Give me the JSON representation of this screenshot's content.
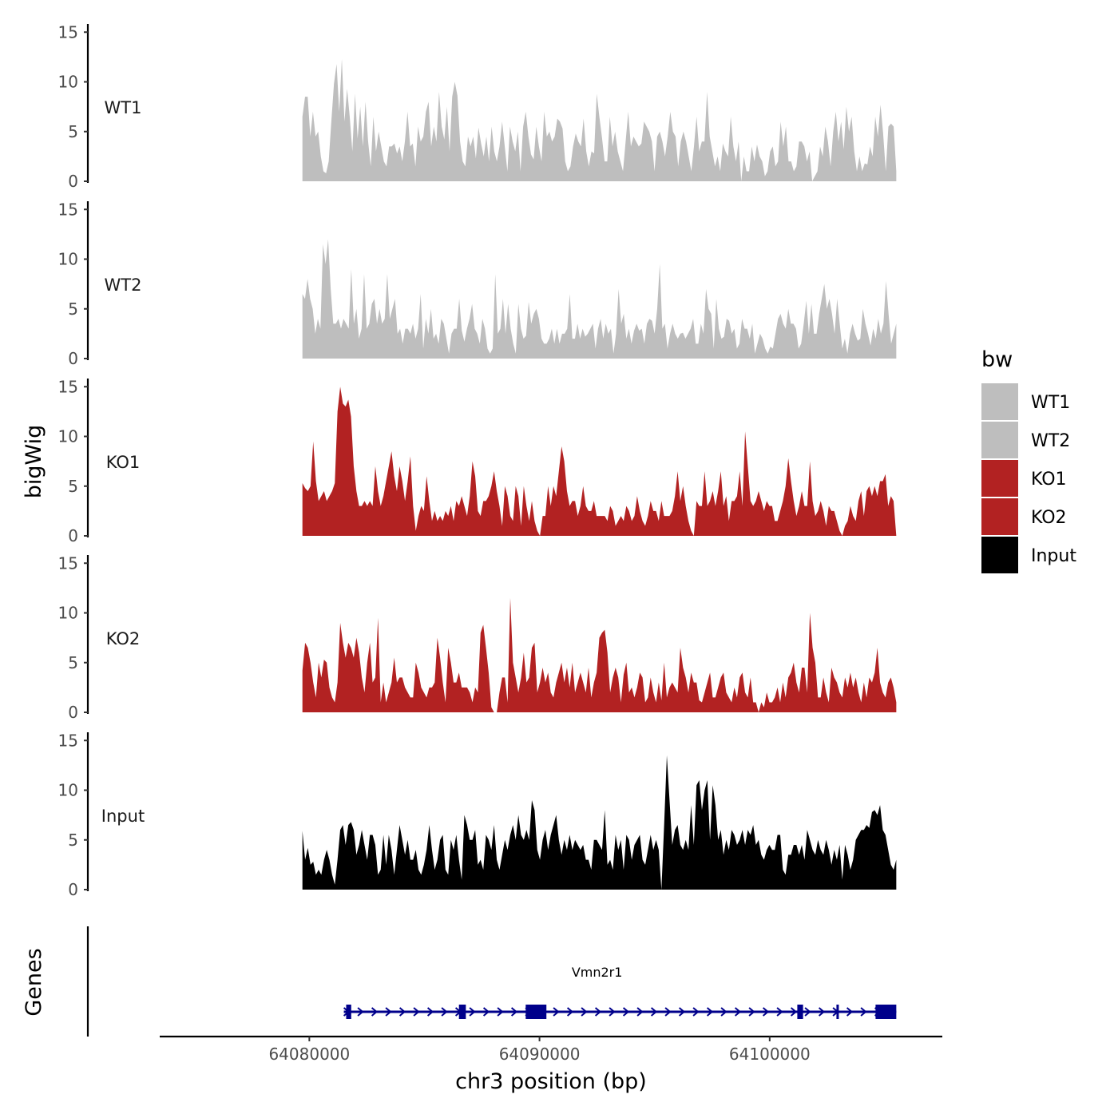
{
  "chart_data": {
    "type": "area",
    "ylabel": "bigWig",
    "xlabel": "chr3 position (bp)",
    "ylim": [
      0,
      15
    ],
    "yticks": [
      0,
      5,
      10,
      15
    ],
    "xlim": [
      64073500,
      64107500
    ],
    "xticks": [
      64080000,
      64090000,
      64100000
    ],
    "xtick_labels": [
      "64080000",
      "64090000",
      "64100000"
    ],
    "data_x_range": [
      64079700,
      64105500
    ],
    "legend": {
      "title": "bw",
      "position": "right",
      "items": [
        {
          "label": "WT1",
          "color": "#bebebe"
        },
        {
          "label": "WT2",
          "color": "#bebebe"
        },
        {
          "label": "KO1",
          "color": "#b22222"
        },
        {
          "label": "KO2",
          "color": "#b22222"
        },
        {
          "label": "Input",
          "color": "#000000"
        }
      ]
    },
    "series": [
      {
        "name": "WT1",
        "color": "#bebebe",
        "values": [
          6.5,
          8.5,
          8.5,
          4.5,
          7,
          4.5,
          5,
          2.5,
          1,
          0.8,
          2,
          6,
          9.8,
          11.8,
          7,
          12.3,
          6,
          9.3,
          6.5,
          3,
          8.8,
          4.3,
          7.5,
          3.5,
          8,
          4,
          1.5,
          6.5,
          3,
          5,
          3.5,
          2,
          1.5,
          3.5,
          3.5,
          3.8,
          2.8,
          3.5,
          2,
          4,
          7,
          3.5,
          3.8,
          1.5,
          5.5,
          4,
          4.5,
          7,
          8,
          3.5,
          5.5,
          4,
          9,
          5.5,
          4.2,
          7.5,
          3,
          8.5,
          10,
          8.6,
          4,
          2,
          1.5,
          4.5,
          3.5,
          4.5,
          2.3,
          5.4,
          3.8,
          2.5,
          4.5,
          2,
          5.5,
          3,
          2,
          3.5,
          6,
          3.5,
          1,
          5.5,
          4,
          3,
          5,
          1,
          5.5,
          7,
          4.5,
          2.7,
          2.2,
          5.5,
          3.5,
          2,
          7,
          4.5,
          5,
          4,
          4.5,
          6.3,
          6,
          5.3,
          2,
          1,
          1.5,
          3.5,
          4.8,
          4,
          3.5,
          6.3,
          3,
          1.5,
          3,
          2.8,
          8.8,
          6.5,
          4.4,
          2,
          2,
          6.5,
          3.5,
          5,
          3,
          2,
          1,
          4,
          7,
          3.5,
          4.5,
          4,
          3.5,
          3.8,
          6,
          5.5,
          5,
          4,
          1,
          4.5,
          5,
          4,
          2.5,
          4.5,
          7,
          5,
          4.5,
          1.5,
          4,
          5,
          4,
          2.5,
          1,
          3.5,
          6.5,
          3,
          4,
          4,
          9,
          4.5,
          3,
          1.5,
          2.5,
          1,
          3.8,
          3,
          2.5,
          6.5,
          3.5,
          2,
          4,
          0,
          2.5,
          1,
          1,
          3.5,
          2,
          3.7,
          2.5,
          2,
          0.5,
          1,
          3,
          3.5,
          1.5,
          2,
          6,
          3.5,
          5.5,
          2,
          2,
          1,
          1.5,
          4,
          4,
          3.5,
          2,
          3,
          0,
          0.5,
          1,
          3.5,
          2.5,
          5.5,
          4,
          1.5,
          5,
          7,
          4,
          6,
          3.2,
          7.5,
          5,
          6.5,
          3,
          1,
          2.5,
          1,
          1.8,
          1.7,
          3.5,
          2.5,
          6.5,
          4.5,
          7.7,
          4.8,
          1,
          5.5,
          5.8,
          5.5,
          1
        ]
      },
      {
        "name": "WT2",
        "color": "#bebebe",
        "values": [
          6.5,
          6,
          8,
          6,
          5,
          2.5,
          4,
          3,
          11.5,
          9.5,
          12,
          7,
          3.5,
          3.5,
          4,
          3,
          4,
          3.5,
          3,
          9,
          3.5,
          5,
          2,
          3,
          8.5,
          3,
          3.5,
          5.5,
          6,
          3.5,
          5,
          3.5,
          4,
          8.5,
          4,
          5,
          6,
          2.5,
          3,
          1.5,
          3,
          3,
          2.5,
          3.5,
          2,
          3,
          6.5,
          1,
          4,
          2.5,
          5,
          2,
          2.5,
          1.5,
          4,
          3.5,
          2,
          0.5,
          2.5,
          3,
          3,
          6,
          2.8,
          1.7,
          3,
          4,
          5.5,
          3,
          2.5,
          1.5,
          4,
          3,
          1,
          0.5,
          1,
          8.5,
          2.5,
          3,
          6,
          2.5,
          5.5,
          3,
          1.5,
          0.5,
          5.5,
          3,
          2,
          2.3,
          5.7,
          3.5,
          4.5,
          5,
          4,
          2,
          1.5,
          1.5,
          2,
          3,
          1.5,
          3,
          1.5,
          2.5,
          2.5,
          3,
          6.5,
          2,
          2,
          3.5,
          2,
          3,
          2.2,
          2.5,
          3,
          3.5,
          1,
          3,
          4,
          2,
          3.5,
          2.5,
          3,
          0.5,
          2.5,
          7,
          3.5,
          4.5,
          2,
          3,
          1.5,
          2.8,
          3.5,
          2.8,
          3,
          1.5,
          3.5,
          4,
          3.8,
          2.5,
          5,
          9.5,
          3,
          3.5,
          1,
          2.5,
          3.5,
          2.5,
          2,
          2.5,
          2.6,
          2,
          2.5,
          3,
          4,
          1.5,
          1.5,
          3.5,
          2.5,
          7,
          5,
          4.5,
          1,
          6,
          3,
          2,
          2.2,
          4,
          3.8,
          2.5,
          3,
          1,
          1.5,
          4,
          3,
          3,
          2,
          3.5,
          0.5,
          1.5,
          2.5,
          2,
          1,
          0.5,
          1.2,
          1,
          2.5,
          4,
          4.5,
          3.5,
          3,
          5,
          3.5,
          3.5,
          3,
          1,
          1.5,
          3.5,
          5.8,
          2.5,
          5.5,
          2.5,
          2.5,
          4.5,
          6,
          7.5,
          5,
          6,
          4.5,
          2.5,
          6,
          3.5,
          1,
          2,
          0.5,
          2.5,
          3.5,
          2.5,
          1.8,
          2,
          5,
          3.5,
          2.5,
          1.3,
          3,
          2,
          4,
          2.5,
          3.5,
          7.8,
          4.5,
          1.5,
          2.5,
          3.5
        ]
      },
      {
        "name": "KO1",
        "color": "#b22222",
        "values": [
          5.3,
          4.8,
          4.5,
          5,
          9.5,
          5.5,
          3.5,
          4,
          4.5,
          3.5,
          4,
          4.5,
          5.3,
          12.5,
          15,
          13.3,
          13,
          13.7,
          12,
          7,
          4.5,
          3,
          3,
          3.5,
          3,
          3.5,
          3,
          7,
          4.5,
          3,
          4,
          5.5,
          7,
          8.5,
          6,
          4.5,
          7,
          5.5,
          3.5,
          5.5,
          8,
          3,
          0.5,
          2,
          3,
          2.5,
          6,
          3.5,
          1.5,
          2.5,
          1.5,
          2,
          1.5,
          2.5,
          2,
          3,
          1.5,
          3.5,
          3,
          4,
          3,
          2,
          4,
          7.5,
          6,
          2.5,
          2,
          3.5,
          3.5,
          4,
          5,
          6.5,
          4.5,
          3,
          1,
          5,
          4,
          2,
          1.5,
          5,
          4,
          1,
          5,
          3,
          1.5,
          3.5,
          1.5,
          0.5,
          0,
          2,
          2,
          5,
          3,
          5,
          4,
          6.5,
          9,
          7.5,
          4.5,
          3,
          3.5,
          3.5,
          2,
          3,
          5,
          3,
          2.5,
          2.5,
          3.5,
          2,
          2,
          2,
          2,
          1.5,
          3,
          2.5,
          1,
          1.5,
          2,
          1.5,
          3,
          2.5,
          1.5,
          2,
          4,
          2.5,
          1.5,
          1,
          2,
          3.5,
          2.5,
          2.5,
          1.5,
          3.5,
          2,
          2,
          2,
          2.5,
          4,
          6.5,
          3.5,
          5,
          3,
          1.5,
          0.5,
          0,
          3.5,
          3,
          3,
          6.5,
          3,
          3.5,
          4.5,
          3,
          4.5,
          6.5,
          3,
          4,
          1.5,
          3.5,
          3.5,
          4,
          6.5,
          3,
          10.5,
          7,
          3.5,
          3,
          3.5,
          4.5,
          3.5,
          2.5,
          3.5,
          3,
          3,
          1.5,
          1.5,
          2.5,
          3.5,
          5,
          7.8,
          5.5,
          3.5,
          2,
          3,
          4.5,
          3,
          3,
          7.5,
          3.5,
          2,
          2.5,
          3.5,
          2.5,
          1,
          3,
          2.5,
          2.5,
          1.5,
          0.5,
          0,
          1,
          1.5,
          3,
          2,
          1.5,
          3.5,
          4.5,
          2,
          4.5,
          5,
          4,
          5,
          4,
          5.5,
          5.5,
          6.2,
          3,
          4,
          3.5,
          0
        ]
      },
      {
        "name": "KO2",
        "color": "#b22222",
        "values": [
          4.2,
          7,
          6.5,
          5,
          3,
          1.5,
          5,
          3.5,
          5.3,
          5,
          2.5,
          1.5,
          1,
          3,
          9,
          7,
          5.5,
          7,
          6.5,
          5.5,
          7.5,
          6,
          3.5,
          2,
          5,
          7,
          3,
          3.5,
          9.5,
          1,
          3,
          1,
          2,
          3,
          5.5,
          3,
          3.5,
          3.5,
          2.5,
          2,
          1.5,
          1.5,
          5,
          4,
          2.5,
          2,
          1.5,
          2.5,
          2.5,
          3,
          7.5,
          5.5,
          3,
          1,
          6.5,
          5,
          3,
          3,
          4,
          2.5,
          2.5,
          2.5,
          2,
          1,
          2.5,
          2,
          8,
          8.8,
          6.5,
          4,
          0.5,
          0,
          0,
          2,
          3.5,
          3.5,
          1,
          11.5,
          5,
          3.5,
          2,
          3.5,
          6,
          3,
          3.5,
          6.5,
          7,
          2,
          3,
          4.5,
          3,
          4,
          2,
          1.5,
          3,
          4,
          5,
          3,
          4.5,
          2.5,
          5,
          2,
          3,
          4,
          3,
          2,
          4.5,
          1.5,
          3,
          4,
          7.5,
          8,
          8.3,
          6,
          2,
          3.5,
          4.5,
          3.5,
          1,
          3.8,
          5,
          2,
          2.5,
          1.5,
          2.5,
          4,
          3.5,
          1,
          1.5,
          3.5,
          2,
          1,
          3,
          1.2,
          5,
          1.5,
          2.5,
          3,
          2.5,
          2,
          6.5,
          4.5,
          3.5,
          2,
          4,
          3,
          3,
          1.2,
          1,
          2,
          3,
          4,
          1.5,
          1.5,
          2.5,
          3.5,
          4,
          2,
          1.5,
          1,
          2.5,
          1.5,
          3.5,
          4,
          2,
          1.5,
          3.5,
          1,
          1,
          0,
          1,
          0.5,
          2,
          1,
          1,
          1.5,
          2.5,
          1,
          3,
          1.5,
          3.5,
          4,
          5,
          3,
          2,
          4.5,
          4.5,
          2,
          10,
          6.5,
          5,
          1.5,
          1.5,
          3.5,
          2,
          1,
          4.5,
          3.5,
          3,
          2,
          1.5,
          3.5,
          2.5,
          4,
          2.5,
          3.5,
          2,
          1,
          3,
          1.5,
          3.5,
          3,
          4,
          6.5,
          3,
          2,
          1.5,
          3,
          3.5,
          2.5,
          1
        ]
      },
      {
        "name": "Input",
        "color": "#000000",
        "values": [
          5.9,
          3,
          4.2,
          2.5,
          2.8,
          1.5,
          2,
          1.5,
          3,
          4,
          3,
          1.5,
          0.5,
          3,
          6,
          6.5,
          4.5,
          6.5,
          6.8,
          6,
          3.5,
          4.5,
          6,
          4.5,
          3,
          5.5,
          5.5,
          4.5,
          1.5,
          2,
          5.5,
          2.5,
          5.5,
          4,
          1.5,
          4,
          6.5,
          5,
          3.5,
          5,
          3,
          3,
          4,
          2,
          1.5,
          2.5,
          4,
          6.5,
          4,
          2,
          3,
          5,
          5.5,
          2,
          1.5,
          5,
          4,
          5.5,
          3,
          1,
          7.5,
          6.5,
          5,
          5,
          6,
          2.5,
          3,
          2,
          5.5,
          5,
          4,
          6.5,
          3,
          2,
          3.5,
          5,
          4,
          5.5,
          6.5,
          5,
          7.5,
          5.5,
          5,
          6,
          5,
          9,
          8,
          4,
          3,
          5,
          6,
          4,
          5.5,
          6.5,
          7.5,
          5,
          3.5,
          5,
          4,
          5.5,
          4,
          5,
          4.5,
          4,
          4.5,
          3,
          3,
          2,
          5,
          5,
          4.5,
          4,
          8,
          2.5,
          3,
          2,
          5.5,
          4,
          5,
          2,
          5.5,
          5,
          3,
          4.5,
          5,
          5.5,
          3,
          2.5,
          4,
          5.5,
          4,
          5,
          4,
          0,
          6.5,
          13.5,
          9,
          4.5,
          6,
          6.5,
          4.5,
          4,
          5,
          4,
          8.5,
          4.5,
          10.5,
          11,
          8,
          10,
          11,
          5,
          10.5,
          8.5,
          5,
          6,
          3.5,
          5,
          4,
          6,
          5.5,
          4.5,
          5,
          6,
          4.5,
          6,
          5.5,
          6.5,
          4.5,
          5,
          3.5,
          3,
          4,
          4.5,
          4,
          4,
          5.5,
          5.5,
          2,
          1.5,
          3.5,
          3.5,
          4.5,
          4.5,
          3.5,
          4.5,
          3,
          6,
          5,
          4,
          3.5,
          5,
          4,
          3.5,
          5,
          4,
          2.5,
          4,
          3,
          4.5,
          1,
          4.5,
          3.5,
          2,
          3,
          5,
          5.5,
          6,
          6,
          6.5,
          6.2,
          7.8,
          8,
          7.5,
          8.5,
          6,
          5.5,
          4,
          2.5,
          2,
          3
        ]
      }
    ],
    "gene": {
      "name": "Vmn2r1",
      "strand": "+",
      "start": 64081500,
      "end": 64105500,
      "exons": [
        [
          64081600,
          64081820
        ],
        [
          64086500,
          64086800
        ],
        [
          64089400,
          64090300
        ],
        [
          64101200,
          64101450
        ],
        [
          64102900,
          64102960
        ],
        [
          64104600,
          64105500
        ]
      ]
    },
    "genes_track_label": "Genes"
  }
}
